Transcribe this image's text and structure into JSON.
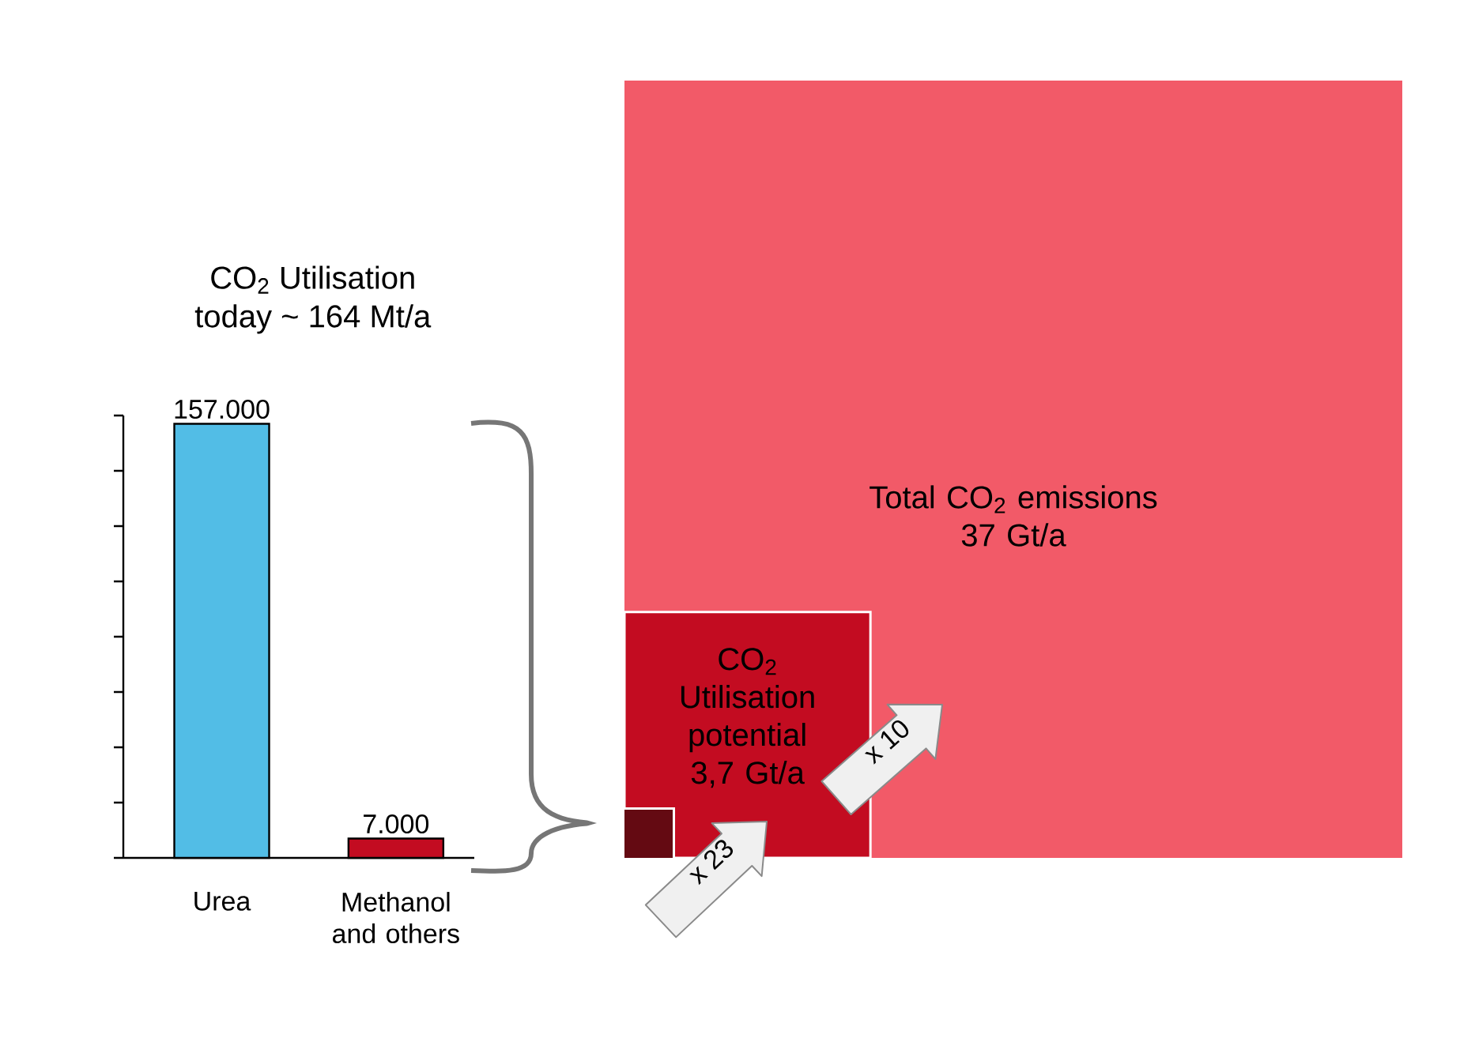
{
  "chart_data": [
    {
      "type": "bar",
      "title": "CO$_{2}$ Utilisation",
      "subtitle": "today ~ 164 Mt/a",
      "categories": [
        "Urea",
        "Methanol and others"
      ],
      "values": [
        157000,
        7000
      ],
      "colors": [
        "#52bde6",
        "#c30c21"
      ],
      "value_labels": [
        "157.000",
        "7.000"
      ],
      "ylim": [
        0,
        160000
      ],
      "yticks": [
        {
          "value": 0,
          "label": null
        },
        {
          "value": 20000,
          "label": null
        },
        {
          "value": 40000,
          "label": null
        },
        {
          "value": 60000,
          "label": null
        },
        {
          "value": 80000,
          "label": null
        },
        {
          "value": 100000,
          "label": null
        },
        {
          "value": 120000,
          "label": null
        },
        {
          "value": 140000,
          "label": null
        },
        {
          "value": 160000,
          "label": null
        }
      ],
      "tick_labels": "x"
    },
    {
      "type": "other",
      "categories": [
        "Total CO$_{2}$ emissions",
        "CO$_{2}$ Utilisation potential"
      ],
      "values": [
        37,
        3.7
      ],
      "value_labels": [
        "37 Gt/a",
        "3,7 Gt/a"
      ],
      "colors": [
        "#f25a68",
        "#c30c21"
      ],
      "annotations": [
        "x 10",
        "x 23"
      ]
    }
  ]
}
